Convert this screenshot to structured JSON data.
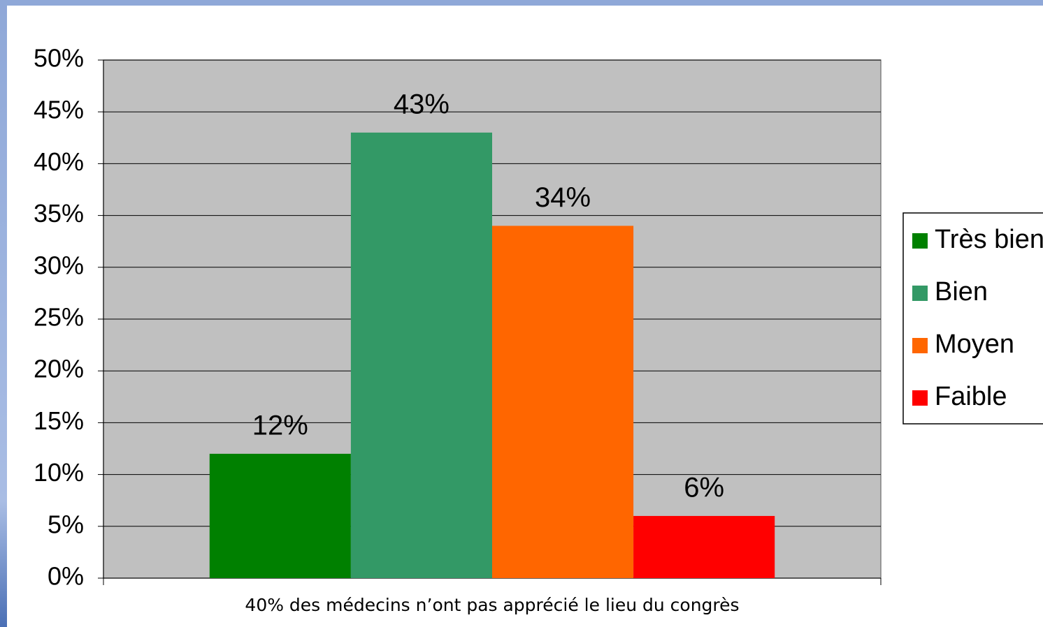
{
  "chart_data": {
    "type": "bar",
    "categories": [
      "40% des médecins n’ont pas apprécié le lieu du congrès"
    ],
    "series": [
      {
        "name": "Très bien",
        "color": "#008000",
        "values": [
          12
        ],
        "value_labels": [
          "12%"
        ]
      },
      {
        "name": "Bien",
        "color": "#339966",
        "values": [
          43
        ],
        "value_labels": [
          "43%"
        ]
      },
      {
        "name": "Moyen",
        "color": "#ff6600",
        "values": [
          34
        ],
        "value_labels": [
          "34%"
        ]
      },
      {
        "name": "Faible",
        "color": "#ff0000",
        "values": [
          6
        ],
        "value_labels": [
          "6%"
        ]
      }
    ],
    "ylim": [
      0,
      50
    ],
    "yticks": [
      {
        "value": 0,
        "label": "0%"
      },
      {
        "value": 5,
        "label": "5%"
      },
      {
        "value": 10,
        "label": "10%"
      },
      {
        "value": 15,
        "label": "15%"
      },
      {
        "value": 20,
        "label": "20%"
      },
      {
        "value": 25,
        "label": "25%"
      },
      {
        "value": 30,
        "label": "30%"
      },
      {
        "value": 35,
        "label": "35%"
      },
      {
        "value": 40,
        "label": "40%"
      },
      {
        "value": 45,
        "label": "45%"
      },
      {
        "value": 50,
        "label": "50%"
      }
    ],
    "grid": true,
    "legend": "right"
  }
}
